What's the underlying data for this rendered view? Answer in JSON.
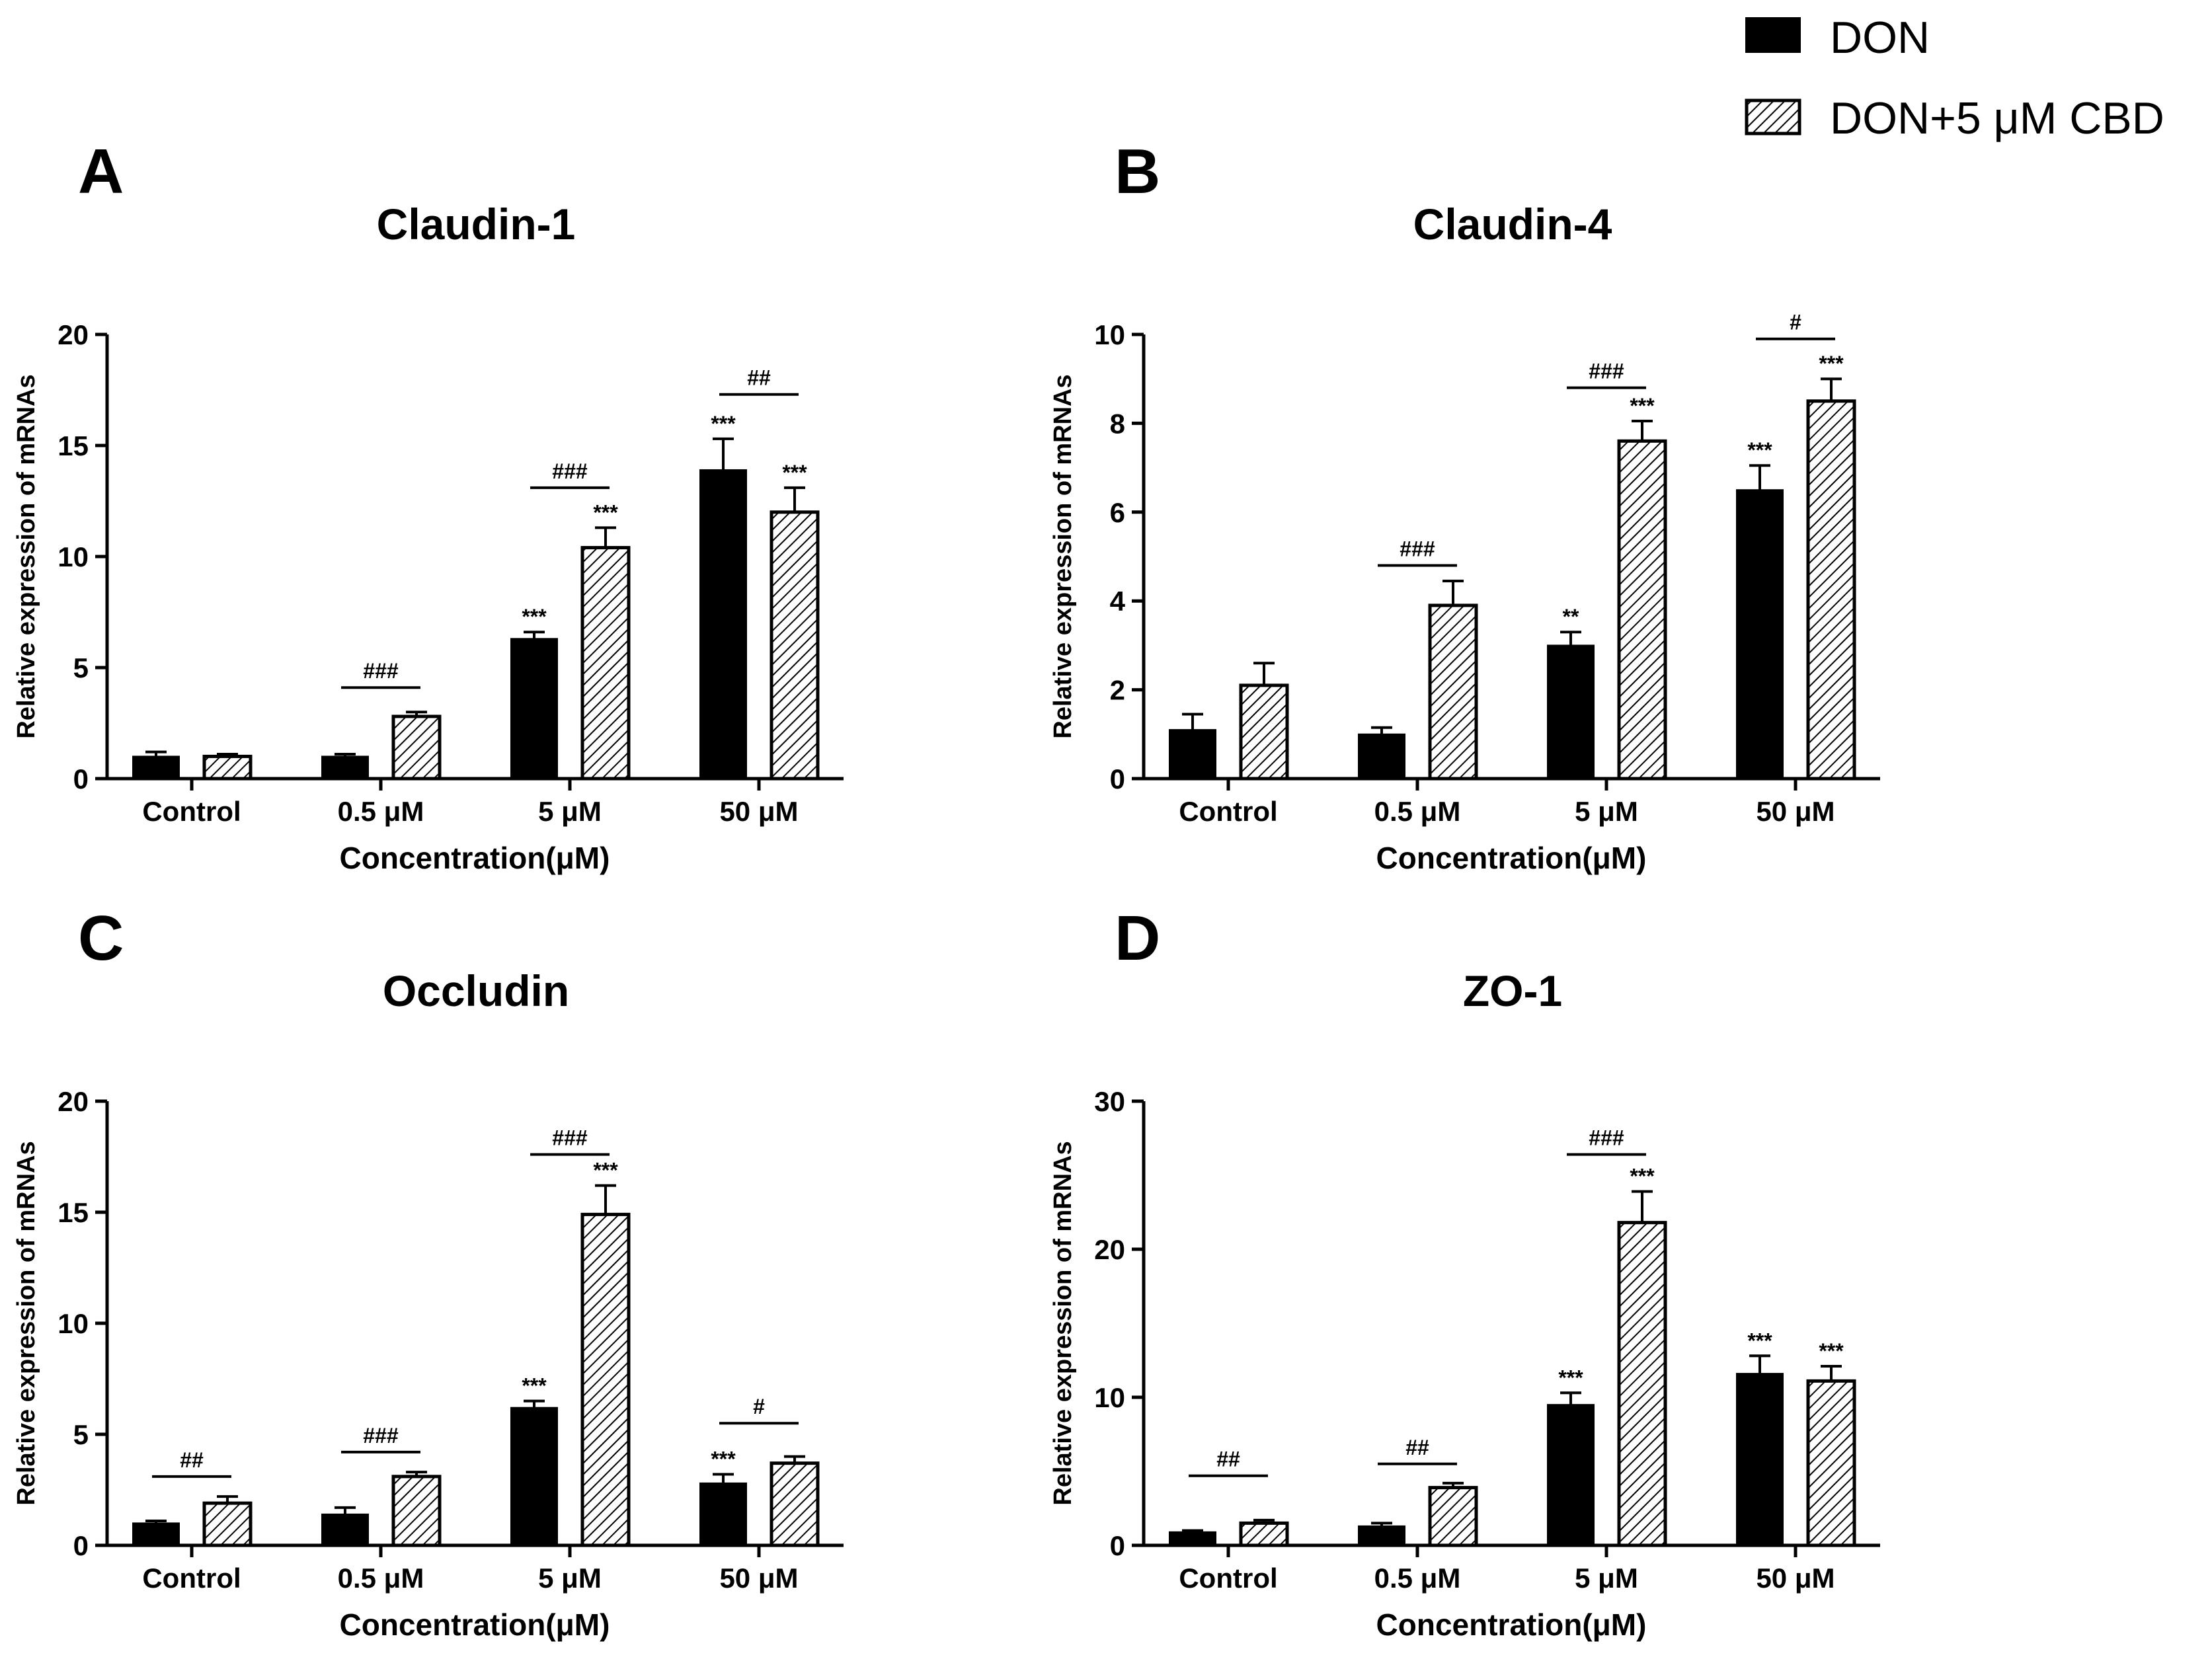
{
  "legend": {
    "items": [
      {
        "label": "DON",
        "pattern": "solid"
      },
      {
        "label": "DON+5 μM CBD",
        "pattern": "hatch"
      }
    ]
  },
  "colors": {
    "bar_fill": "#000000",
    "hatch": "#000000",
    "background": "#ffffff"
  },
  "chart_data": [
    {
      "panel": "A",
      "type": "bar",
      "title": "Claudin-1",
      "xlabel": "Concentration(μM)",
      "ylabel": "Relative expression of mRNAs",
      "categories": [
        "Control",
        "0.5 μM",
        "5 μM",
        "50 μM"
      ],
      "ylim": [
        0,
        20
      ],
      "yticks": [
        0,
        5,
        10,
        15,
        20
      ],
      "ytick_labels": [
        "0",
        "5",
        "10",
        "15",
        "20"
      ],
      "series": [
        {
          "name": "DON",
          "values": [
            1.0,
            1.0,
            6.3,
            13.9
          ],
          "errors": [
            0.2,
            0.1,
            0.3,
            1.4
          ],
          "stars": [
            "",
            "",
            "***",
            "***"
          ]
        },
        {
          "name": "DON+5 μM CBD",
          "values": [
            1.0,
            2.8,
            10.4,
            12.0
          ],
          "errors": [
            0.1,
            0.2,
            0.9,
            1.1
          ],
          "stars": [
            "",
            "",
            "***",
            "***"
          ]
        }
      ],
      "comparisons": [
        {
          "category": 1,
          "label": "###",
          "level": 4.1
        },
        {
          "category": 2,
          "label": "###",
          "level": 13.1
        },
        {
          "category": 3,
          "label": "##",
          "level": 17.3
        }
      ]
    },
    {
      "panel": "B",
      "type": "bar",
      "title": "Claudin-4",
      "xlabel": "Concentration(μM)",
      "ylabel": "Relative expression of mRNAs",
      "categories": [
        "Control",
        "0.5 μM",
        "5 μM",
        "50 μM"
      ],
      "ylim": [
        0,
        10
      ],
      "yticks": [
        0,
        2,
        4,
        6,
        8,
        10
      ],
      "ytick_labels": [
        "0",
        "2",
        "4",
        "6",
        "8",
        "10"
      ],
      "series": [
        {
          "name": "DON",
          "values": [
            1.1,
            1.0,
            3.0,
            6.5
          ],
          "errors": [
            0.35,
            0.15,
            0.3,
            0.55
          ],
          "stars": [
            "",
            "",
            "**",
            "***"
          ]
        },
        {
          "name": "DON+5 μM CBD",
          "values": [
            2.1,
            3.9,
            7.6,
            8.5
          ],
          "errors": [
            0.5,
            0.55,
            0.45,
            0.5
          ],
          "stars": [
            "",
            "",
            "***",
            "***"
          ]
        }
      ],
      "comparisons": [
        {
          "category": 1,
          "label": "###",
          "level": 4.8
        },
        {
          "category": 2,
          "label": "###",
          "level": 8.8
        },
        {
          "category": 3,
          "label": "#",
          "level": 9.9
        }
      ]
    },
    {
      "panel": "C",
      "type": "bar",
      "title": "Occludin",
      "xlabel": "Concentration(μM)",
      "ylabel": "Relative expression of mRNAs",
      "categories": [
        "Control",
        "0.5 μM",
        "5 μM",
        "50 μM"
      ],
      "ylim": [
        0,
        20
      ],
      "yticks": [
        0,
        5,
        10,
        15,
        20
      ],
      "ytick_labels": [
        "0",
        "5",
        "10",
        "15",
        "20"
      ],
      "series": [
        {
          "name": "DON",
          "values": [
            1.0,
            1.4,
            6.2,
            2.8
          ],
          "errors": [
            0.1,
            0.3,
            0.3,
            0.4
          ],
          "stars": [
            "",
            "",
            "***",
            "***"
          ]
        },
        {
          "name": "DON+5 μM CBD",
          "values": [
            1.9,
            3.1,
            14.9,
            3.7
          ],
          "errors": [
            0.3,
            0.2,
            1.3,
            0.3
          ],
          "stars": [
            "",
            "",
            "***",
            ""
          ]
        }
      ],
      "comparisons": [
        {
          "category": 0,
          "label": "##",
          "level": 3.1
        },
        {
          "category": 1,
          "label": "###",
          "level": 4.2
        },
        {
          "category": 2,
          "label": "###",
          "level": 17.6
        },
        {
          "category": 3,
          "label": "#",
          "level": 5.5
        }
      ]
    },
    {
      "panel": "D",
      "type": "bar",
      "title": "ZO-1",
      "xlabel": "Concentration(μM)",
      "ylabel": "Relative expression of mRNAs",
      "categories": [
        "Control",
        "0.5 μM",
        "5 μM",
        "50 μM"
      ],
      "ylim": [
        0,
        30
      ],
      "yticks": [
        0,
        10,
        20,
        30
      ],
      "ytick_labels": [
        "0",
        "10",
        "20",
        "30"
      ],
      "series": [
        {
          "name": "DON",
          "values": [
            0.9,
            1.3,
            9.5,
            11.6
          ],
          "errors": [
            0.1,
            0.2,
            0.8,
            1.2
          ],
          "stars": [
            "",
            "",
            "***",
            "***"
          ]
        },
        {
          "name": "DON+5 μM CBD",
          "values": [
            1.5,
            3.9,
            21.8,
            11.1
          ],
          "errors": [
            0.2,
            0.3,
            2.1,
            1.0
          ],
          "stars": [
            "",
            "",
            "***",
            "***"
          ]
        }
      ],
      "comparisons": [
        {
          "category": 0,
          "label": "##",
          "level": 4.7
        },
        {
          "category": 1,
          "label": "##",
          "level": 5.5
        },
        {
          "category": 2,
          "label": "###",
          "level": 26.4
        }
      ]
    }
  ]
}
